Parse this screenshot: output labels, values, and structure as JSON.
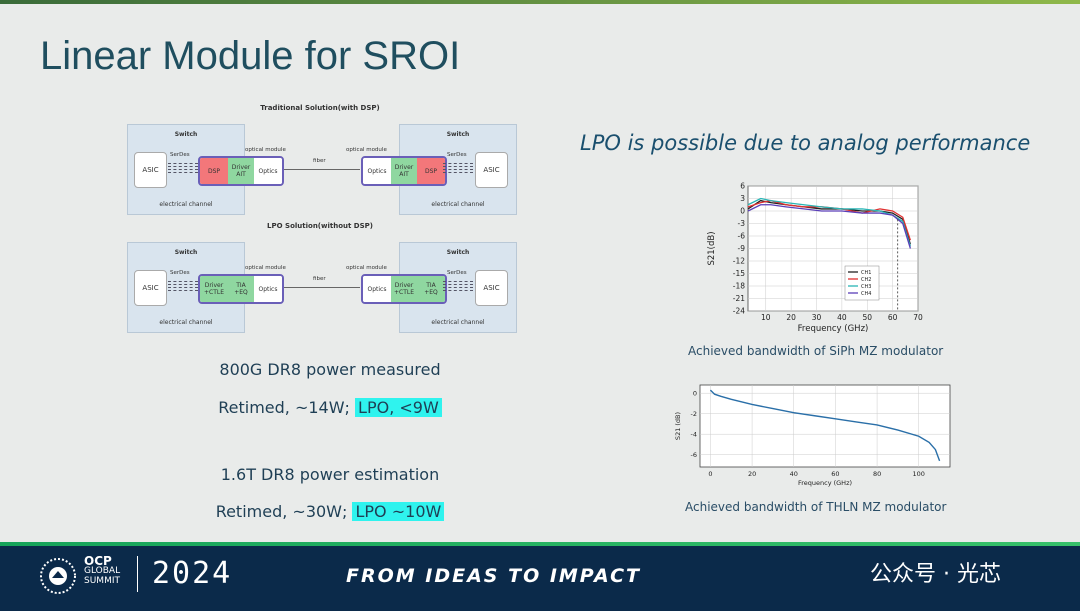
{
  "slide": {
    "title": "Linear Module for SROI",
    "lpo_statement": "LPO is possible due to analog performance"
  },
  "diagram_traditional": {
    "title": "Traditional Solution(with DSP)",
    "switch_label": "Switch",
    "asic": "ASIC",
    "serdes": "SerDes",
    "optical_module_label": "optical module",
    "fiber_label": "fiber",
    "channel_label": "electrical channel",
    "blocks_left": [
      "DSP",
      "Driver\nAIT",
      "Optics"
    ],
    "blocks_right": [
      "Optics",
      "Driver\nAIT",
      "DSP"
    ]
  },
  "diagram_lpo": {
    "title": "LPO Solution(without DSP)",
    "switch_label": "Switch",
    "asic": "ASIC",
    "serdes": "SerDes",
    "optical_module_label": "optical module",
    "fiber_label": "fiber",
    "channel_label": "electrical channel",
    "blocks_left": [
      "Driver\n+CTLE",
      "TIA\n+EQ",
      "Optics"
    ],
    "blocks_right": [
      "Optics",
      "Driver\n+CTLE",
      "TIA\n+EQ"
    ]
  },
  "power": {
    "dr8_800g_heading": "800G DR8 power measured",
    "dr8_800g_retimed": "Retimed, ~14W;",
    "dr8_800g_lpo": "LPO, <9W",
    "dr8_16t_heading": "1.6T DR8 power estimation",
    "dr8_16t_retimed": "Retimed, ~30W;",
    "dr8_16t_lpo": "LPO ~10W"
  },
  "chart_data": [
    {
      "type": "line",
      "ylabel": "S21(dB)",
      "xlabel": "Frequency (GHz)",
      "xlim": [
        3,
        70
      ],
      "ylim": [
        -24,
        6
      ],
      "xticks": [
        10,
        20,
        30,
        40,
        50,
        60,
        70
      ],
      "yticks": [
        6,
        3,
        0,
        -3,
        -6,
        -9,
        -12,
        -15,
        -18,
        -21,
        -24
      ],
      "grid": true,
      "legend_position": "right",
      "caption": "Achieved bandwidth of SiPh MZ modulator",
      "series": [
        {
          "name": "CH1",
          "color": "#222222",
          "x": [
            3,
            8,
            12,
            18,
            25,
            32,
            40,
            48,
            55,
            60,
            64,
            67
          ],
          "y": [
            0.5,
            2.5,
            2,
            1.5,
            1,
            0.5,
            0.5,
            0,
            0,
            -0.5,
            -2,
            -8
          ]
        },
        {
          "name": "CH2",
          "color": "#e03030",
          "x": [
            3,
            8,
            12,
            18,
            25,
            32,
            40,
            48,
            55,
            60,
            64,
            67
          ],
          "y": [
            1,
            2,
            2.5,
            1.5,
            1,
            1,
            0.5,
            -0.5,
            0.5,
            0,
            -1.5,
            -7
          ]
        },
        {
          "name": "CH3",
          "color": "#29b5b5",
          "x": [
            3,
            8,
            12,
            18,
            25,
            32,
            40,
            48,
            55,
            60,
            64,
            67
          ],
          "y": [
            1.5,
            3,
            2.5,
            2,
            1.5,
            1,
            0.5,
            0.5,
            0,
            -1,
            -2.5,
            -8.5
          ]
        },
        {
          "name": "CH4",
          "color": "#5a3fb8",
          "x": [
            3,
            8,
            12,
            18,
            25,
            32,
            40,
            48,
            55,
            60,
            64,
            67
          ],
          "y": [
            0,
            1.5,
            1.5,
            1,
            0.5,
            0,
            0,
            -0.5,
            -0.5,
            -1,
            -3,
            -9
          ]
        }
      ],
      "annotation": "dashed marker near 62 GHz"
    },
    {
      "type": "line",
      "ylabel": "S21 (dB)",
      "xlabel": "Frequency (GHz)",
      "xlim": [
        -5,
        115
      ],
      "ylim": [
        -7.2,
        0.8
      ],
      "xticks": [
        0,
        20,
        40,
        60,
        80,
        100
      ],
      "yticks": [
        0,
        -2,
        -4,
        -6
      ],
      "grid": true,
      "caption": "Achieved bandwidth of THLN MZ modulator",
      "series": [
        {
          "color": "#2a6fa8",
          "x": [
            0,
            2,
            5,
            10,
            20,
            30,
            40,
            50,
            60,
            70,
            80,
            90,
            100,
            105,
            108,
            110
          ],
          "y": [
            0.3,
            -0.1,
            -0.3,
            -0.6,
            -1.1,
            -1.5,
            -1.9,
            -2.2,
            -2.5,
            -2.8,
            -3.1,
            -3.6,
            -4.2,
            -4.8,
            -5.5,
            -6.6
          ]
        }
      ]
    }
  ],
  "footer": {
    "brand_lines": [
      "OCP",
      "GLOBAL",
      "SUMMIT"
    ],
    "year": "2024",
    "slogan": "FROM IDEAS TO IMPACT",
    "watermark": "公众号 · 光芯"
  }
}
